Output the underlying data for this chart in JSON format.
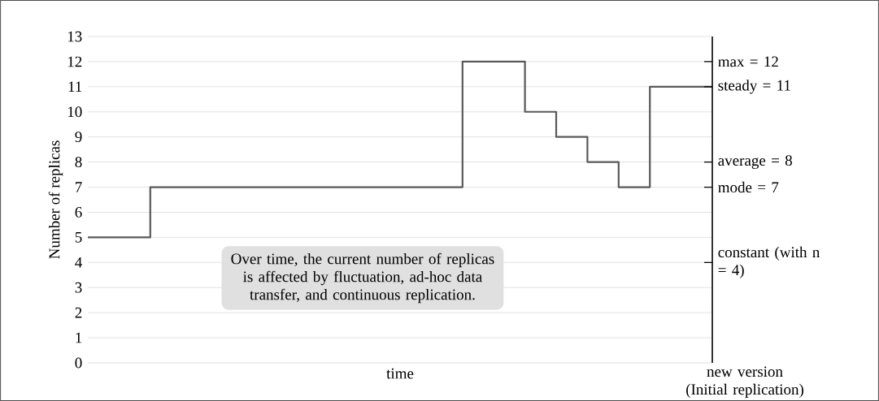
{
  "chart_data": {
    "type": "step",
    "xlabel": "time",
    "ylabel": "Number of replicas",
    "categories": [
      null,
      null,
      null,
      null,
      null,
      null,
      null,
      null,
      null,
      null,
      null,
      null,
      null,
      null,
      null,
      null,
      null,
      null,
      null,
      null,
      null
    ],
    "values": [
      5,
      5,
      7,
      7,
      7,
      7,
      7,
      7,
      7,
      7,
      7,
      7,
      12,
      12,
      10,
      9,
      8,
      7,
      11,
      11,
      11
    ],
    "color": "#595959",
    "ylim": [
      0,
      13
    ],
    "yticks": [
      0,
      1,
      2,
      3,
      4,
      5,
      6,
      7,
      8,
      9,
      10,
      11,
      12,
      13
    ],
    "grid": "y",
    "y2lim": [
      0,
      13
    ],
    "y2ticks": [
      {
        "value": 4,
        "label": "constant (with n = 4)"
      },
      {
        "value": 7,
        "label": "mode = 7"
      },
      {
        "value": 8,
        "label": "average = 8"
      },
      {
        "value": 11,
        "label": "steady = 11"
      },
      {
        "value": 12,
        "label": "max = 12"
      }
    ],
    "annotations": [
      "Over time, the current number of replicas is affected by fluctuation, ad-hoc data transfer, and continuous replication.",
      "new version (Initial replication)"
    ]
  }
}
